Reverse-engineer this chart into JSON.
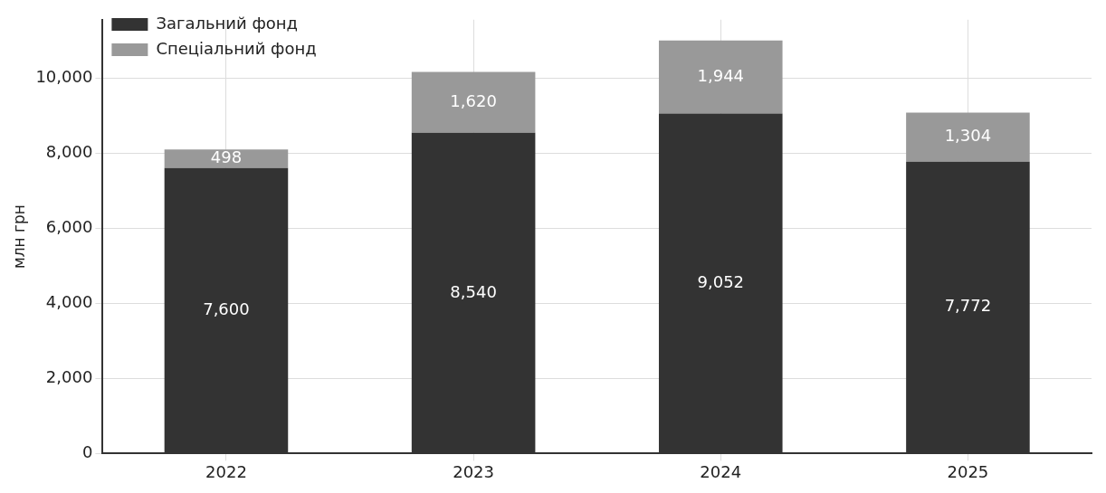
{
  "chart_data": {
    "type": "bar",
    "stacked": true,
    "ylabel": "млн грн",
    "categories": [
      "2022",
      "2023",
      "2024",
      "2025"
    ],
    "series": [
      {
        "name": "Загальний фонд",
        "color": "#333333",
        "values": [
          7600,
          8540,
          9052,
          7772
        ],
        "value_labels": [
          "7,600",
          "8,540",
          "9,052",
          "7,772"
        ]
      },
      {
        "name": "Спеціальний фонд",
        "color": "#999999",
        "values": [
          498,
          1620,
          1944,
          1304
        ],
        "value_labels": [
          "498",
          "1,620",
          "1,944",
          "1,304"
        ]
      }
    ],
    "ylim": [
      0,
      11550
    ],
    "yticks": [
      0,
      {
        "value": 2000,
        "label": "2,000"
      },
      {
        "value": 4000,
        "label": "4,000"
      },
      {
        "value": 6000,
        "label": "6,000"
      },
      {
        "value": 8000,
        "label": "8,000"
      },
      {
        "value": 10000,
        "label": "10,000"
      }
    ],
    "grid": true,
    "legend": "top left"
  }
}
